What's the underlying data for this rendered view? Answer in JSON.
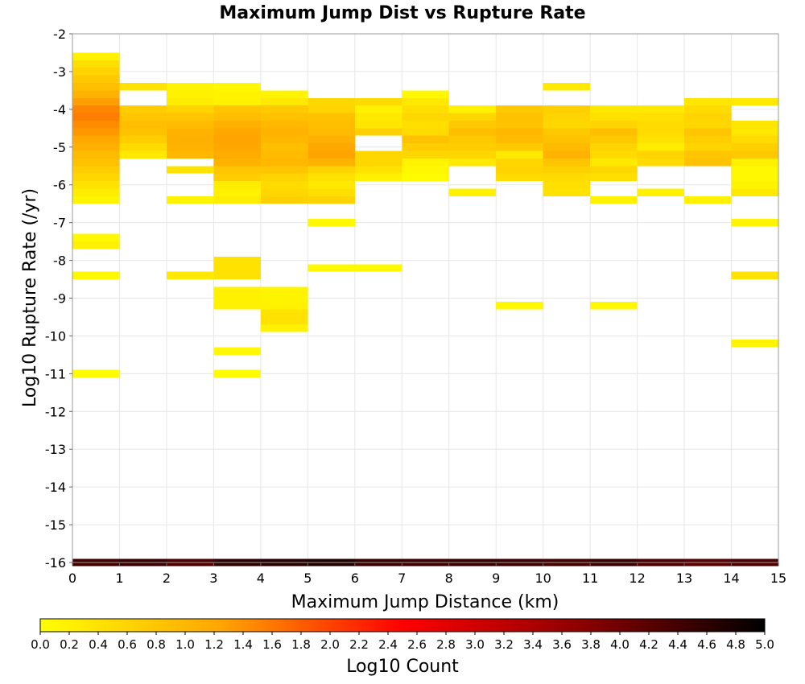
{
  "chart_data": {
    "type": "heatmap",
    "title": "Maximum Jump Dist vs Rupture Rate",
    "xlabel": "Maximum Jump Distance (km)",
    "ylabel": "Log10 Rupture Rate (/yr)",
    "xlim": [
      0,
      15
    ],
    "ylim": [
      -16,
      -2
    ],
    "x_ticks": [
      "0",
      "1",
      "2",
      "3",
      "4",
      "5",
      "6",
      "7",
      "8",
      "9",
      "10",
      "11",
      "12",
      "13",
      "14",
      "15"
    ],
    "y_ticks": [
      "-16",
      "-15",
      "-14",
      "-13",
      "-12",
      "-11",
      "-10",
      "-9",
      "-8",
      "-7",
      "-6",
      "-5",
      "-4",
      "-3",
      "-2"
    ],
    "grid": true,
    "cell_height": 0.2,
    "colorbar": {
      "label": "Log10 Count",
      "range": [
        0,
        5
      ],
      "ticks": [
        "0.0",
        "0.2",
        "0.4",
        "0.6",
        "0.8",
        "1.0",
        "1.2",
        "1.4",
        "1.6",
        "1.8",
        "2.0",
        "2.2",
        "2.4",
        "2.6",
        "2.8",
        "3.0",
        "3.2",
        "3.4",
        "3.6",
        "3.8",
        "4.0",
        "4.2",
        "4.4",
        "4.6",
        "4.8",
        "5.0"
      ],
      "colors": [
        "#ffff00",
        "#ffa500",
        "#ff0000",
        "#8b0000",
        "#000000"
      ]
    },
    "columns": [
      {
        "x": [
          0,
          1
        ],
        "cells": [
          [
            -2.6,
            0.2
          ],
          [
            -2.8,
            0.45
          ],
          [
            -3.0,
            0.6
          ],
          [
            -3.2,
            0.75
          ],
          [
            -3.4,
            0.9
          ],
          [
            -3.6,
            1.05
          ],
          [
            -3.8,
            1.3
          ],
          [
            -4.0,
            1.5
          ],
          [
            -4.2,
            1.55
          ],
          [
            -4.4,
            1.45
          ],
          [
            -4.6,
            1.35
          ],
          [
            -4.8,
            1.2
          ],
          [
            -5.0,
            1.1
          ],
          [
            -5.2,
            0.95
          ],
          [
            -5.4,
            0.85
          ],
          [
            -5.6,
            0.7
          ],
          [
            -5.8,
            0.55
          ],
          [
            -6.0,
            0.4
          ],
          [
            -6.2,
            0.25
          ],
          [
            -6.4,
            0.15
          ],
          [
            -7.4,
            0.1
          ],
          [
            -7.6,
            0.2
          ],
          [
            -8.4,
            0.1
          ],
          [
            -11.0,
            0.05
          ],
          [
            -16.0,
            4.4
          ]
        ]
      },
      {
        "x": [
          1,
          2
        ],
        "cells": [
          [
            -3.4,
            0.4
          ],
          [
            -4.0,
            0.7
          ],
          [
            -4.2,
            0.8
          ],
          [
            -4.4,
            0.9
          ],
          [
            -4.6,
            0.85
          ],
          [
            -4.8,
            0.7
          ],
          [
            -5.0,
            0.5
          ],
          [
            -5.2,
            0.3
          ],
          [
            -16.0,
            4.5
          ]
        ]
      },
      {
        "x": [
          2,
          3
        ],
        "cells": [
          [
            -3.4,
            0.15
          ],
          [
            -3.6,
            0.2
          ],
          [
            -3.8,
            0.25
          ],
          [
            -4.0,
            0.6
          ],
          [
            -4.2,
            0.8
          ],
          [
            -4.4,
            0.95
          ],
          [
            -4.6,
            1.05
          ],
          [
            -4.8,
            1.1
          ],
          [
            -5.0,
            1.05
          ],
          [
            -5.2,
            1.0
          ],
          [
            -5.6,
            0.4
          ],
          [
            -6.4,
            0.15
          ],
          [
            -8.4,
            0.3
          ],
          [
            -16.0,
            4.3
          ]
        ]
      },
      {
        "x": [
          3,
          4
        ],
        "cells": [
          [
            -3.4,
            0.1
          ],
          [
            -3.6,
            0.15
          ],
          [
            -3.8,
            0.2
          ],
          [
            -4.0,
            0.8
          ],
          [
            -4.2,
            0.9
          ],
          [
            -4.4,
            1.1
          ],
          [
            -4.6,
            1.2
          ],
          [
            -4.8,
            1.25
          ],
          [
            -5.0,
            1.2
          ],
          [
            -5.2,
            1.15
          ],
          [
            -5.4,
            1.05
          ],
          [
            -5.6,
            0.8
          ],
          [
            -5.8,
            0.7
          ],
          [
            -6.0,
            0.25
          ],
          [
            -6.2,
            0.2
          ],
          [
            -6.4,
            0.25
          ],
          [
            -8.0,
            0.4
          ],
          [
            -8.2,
            0.4
          ],
          [
            -8.4,
            0.4
          ],
          [
            -8.8,
            0.2
          ],
          [
            -9.0,
            0.2
          ],
          [
            -9.2,
            0.2
          ],
          [
            -10.4,
            0.1
          ],
          [
            -11.0,
            0.05
          ],
          [
            -16.0,
            4.6
          ]
        ]
      },
      {
        "x": [
          4,
          5
        ],
        "cells": [
          [
            -3.6,
            0.15
          ],
          [
            -3.8,
            0.3
          ],
          [
            -4.0,
            0.75
          ],
          [
            -4.2,
            0.85
          ],
          [
            -4.4,
            1.0
          ],
          [
            -4.6,
            1.05
          ],
          [
            -4.8,
            1.0
          ],
          [
            -5.0,
            0.9
          ],
          [
            -5.2,
            0.95
          ],
          [
            -5.4,
            1.0
          ],
          [
            -5.6,
            0.8
          ],
          [
            -5.8,
            0.6
          ],
          [
            -6.0,
            0.5
          ],
          [
            -6.2,
            0.55
          ],
          [
            -6.4,
            0.65
          ],
          [
            -8.8,
            0.15
          ],
          [
            -9.0,
            0.15
          ],
          [
            -9.2,
            0.2
          ],
          [
            -9.4,
            0.4
          ],
          [
            -9.6,
            0.4
          ],
          [
            -9.8,
            0.2
          ],
          [
            -16.0,
            4.65
          ]
        ]
      },
      {
        "x": [
          5,
          6
        ],
        "cells": [
          [
            -3.8,
            0.55
          ],
          [
            -4.0,
            0.6
          ],
          [
            -4.2,
            0.85
          ],
          [
            -4.4,
            0.9
          ],
          [
            -4.6,
            0.95
          ],
          [
            -4.8,
            1.1
          ],
          [
            -5.0,
            1.2
          ],
          [
            -5.2,
            1.25
          ],
          [
            -5.4,
            1.05
          ],
          [
            -5.6,
            0.6
          ],
          [
            -5.8,
            0.4
          ],
          [
            -6.0,
            0.3
          ],
          [
            -6.2,
            0.45
          ],
          [
            -6.4,
            0.6
          ],
          [
            -7.0,
            0.1
          ],
          [
            -8.2,
            0.1
          ],
          [
            -16.0,
            4.7
          ]
        ]
      },
      {
        "x": [
          6,
          7
        ],
        "cells": [
          [
            -3.8,
            0.5
          ],
          [
            -4.0,
            0.2
          ],
          [
            -4.2,
            0.3
          ],
          [
            -4.4,
            0.35
          ],
          [
            -4.6,
            0.65
          ],
          [
            -5.2,
            0.55
          ],
          [
            -5.4,
            0.55
          ],
          [
            -5.6,
            0.4
          ],
          [
            -5.8,
            0.2
          ],
          [
            -8.2,
            0.1
          ],
          [
            -16.0,
            4.5
          ]
        ]
      },
      {
        "x": [
          7,
          8
        ],
        "cells": [
          [
            -3.6,
            0.1
          ],
          [
            -3.8,
            0.3
          ],
          [
            -4.0,
            0.45
          ],
          [
            -4.2,
            0.55
          ],
          [
            -4.4,
            0.45
          ],
          [
            -4.6,
            0.5
          ],
          [
            -4.8,
            0.85
          ],
          [
            -5.0,
            0.7
          ],
          [
            -5.2,
            0.55
          ],
          [
            -5.4,
            0.15
          ],
          [
            -5.6,
            0.1
          ],
          [
            -5.8,
            0.05
          ],
          [
            -16.0,
            4.45
          ]
        ]
      },
      {
        "x": [
          8,
          9
        ],
        "cells": [
          [
            -4.0,
            0.2
          ],
          [
            -4.2,
            0.55
          ],
          [
            -4.4,
            0.75
          ],
          [
            -4.6,
            0.9
          ],
          [
            -4.8,
            0.75
          ],
          [
            -5.0,
            0.7
          ],
          [
            -5.2,
            0.55
          ],
          [
            -5.4,
            0.3
          ],
          [
            -6.2,
            0.2
          ],
          [
            -16.0,
            4.5
          ]
        ]
      },
      {
        "x": [
          9,
          10
        ],
        "cells": [
          [
            -4.0,
            0.75
          ],
          [
            -4.2,
            0.85
          ],
          [
            -4.4,
            0.85
          ],
          [
            -4.6,
            1.0
          ],
          [
            -4.8,
            0.95
          ],
          [
            -5.0,
            0.75
          ],
          [
            -5.2,
            0.3
          ],
          [
            -5.4,
            0.55
          ],
          [
            -5.6,
            0.6
          ],
          [
            -5.8,
            0.5
          ],
          [
            -9.2,
            0.1
          ],
          [
            -16.0,
            4.45
          ]
        ]
      },
      {
        "x": [
          10,
          11
        ],
        "cells": [
          [
            -3.4,
            0.3
          ],
          [
            -4.0,
            0.65
          ],
          [
            -4.2,
            0.6
          ],
          [
            -4.4,
            0.55
          ],
          [
            -4.6,
            0.75
          ],
          [
            -4.8,
            0.85
          ],
          [
            -5.0,
            0.95
          ],
          [
            -5.2,
            1.05
          ],
          [
            -5.4,
            0.8
          ],
          [
            -5.6,
            0.65
          ],
          [
            -5.8,
            0.5
          ],
          [
            -6.0,
            0.45
          ],
          [
            -6.2,
            0.4
          ],
          [
            -16.0,
            4.4
          ]
        ]
      },
      {
        "x": [
          11,
          12
        ],
        "cells": [
          [
            -4.0,
            0.3
          ],
          [
            -4.2,
            0.4
          ],
          [
            -4.4,
            0.6
          ],
          [
            -4.6,
            0.9
          ],
          [
            -4.8,
            0.75
          ],
          [
            -5.0,
            0.6
          ],
          [
            -5.2,
            0.5
          ],
          [
            -5.4,
            0.3
          ],
          [
            -5.6,
            0.55
          ],
          [
            -5.8,
            0.45
          ],
          [
            -6.4,
            0.2
          ],
          [
            -9.2,
            0.1
          ],
          [
            -16.0,
            4.5
          ]
        ]
      },
      {
        "x": [
          12,
          13
        ],
        "cells": [
          [
            -4.0,
            0.3
          ],
          [
            -4.2,
            0.45
          ],
          [
            -4.4,
            0.5
          ],
          [
            -4.6,
            0.5
          ],
          [
            -4.8,
            0.4
          ],
          [
            -5.0,
            0.25
          ],
          [
            -5.2,
            0.6
          ],
          [
            -5.4,
            0.5
          ],
          [
            -6.2,
            0.2
          ],
          [
            -16.0,
            4.3
          ]
        ]
      },
      {
        "x": [
          13,
          14
        ],
        "cells": [
          [
            -3.8,
            0.35
          ],
          [
            -4.0,
            0.5
          ],
          [
            -4.2,
            0.6
          ],
          [
            -4.4,
            0.55
          ],
          [
            -4.6,
            0.8
          ],
          [
            -4.8,
            0.7
          ],
          [
            -5.0,
            0.6
          ],
          [
            -5.2,
            0.8
          ],
          [
            -5.4,
            0.85
          ],
          [
            -6.4,
            0.2
          ],
          [
            -16.0,
            4.2
          ]
        ]
      },
      {
        "x": [
          14,
          15
        ],
        "cells": [
          [
            -3.8,
            0.3
          ],
          [
            -4.4,
            0.35
          ],
          [
            -4.6,
            0.3
          ],
          [
            -4.8,
            0.5
          ],
          [
            -5.0,
            0.65
          ],
          [
            -5.2,
            0.75
          ],
          [
            -5.4,
            0.2
          ],
          [
            -5.6,
            0.1
          ],
          [
            -5.8,
            0.1
          ],
          [
            -6.0,
            0.15
          ],
          [
            -6.2,
            0.3
          ],
          [
            -7.0,
            0.15
          ],
          [
            -8.4,
            0.4
          ],
          [
            -10.2,
            0.15
          ],
          [
            -16.0,
            4.3
          ]
        ]
      }
    ]
  }
}
